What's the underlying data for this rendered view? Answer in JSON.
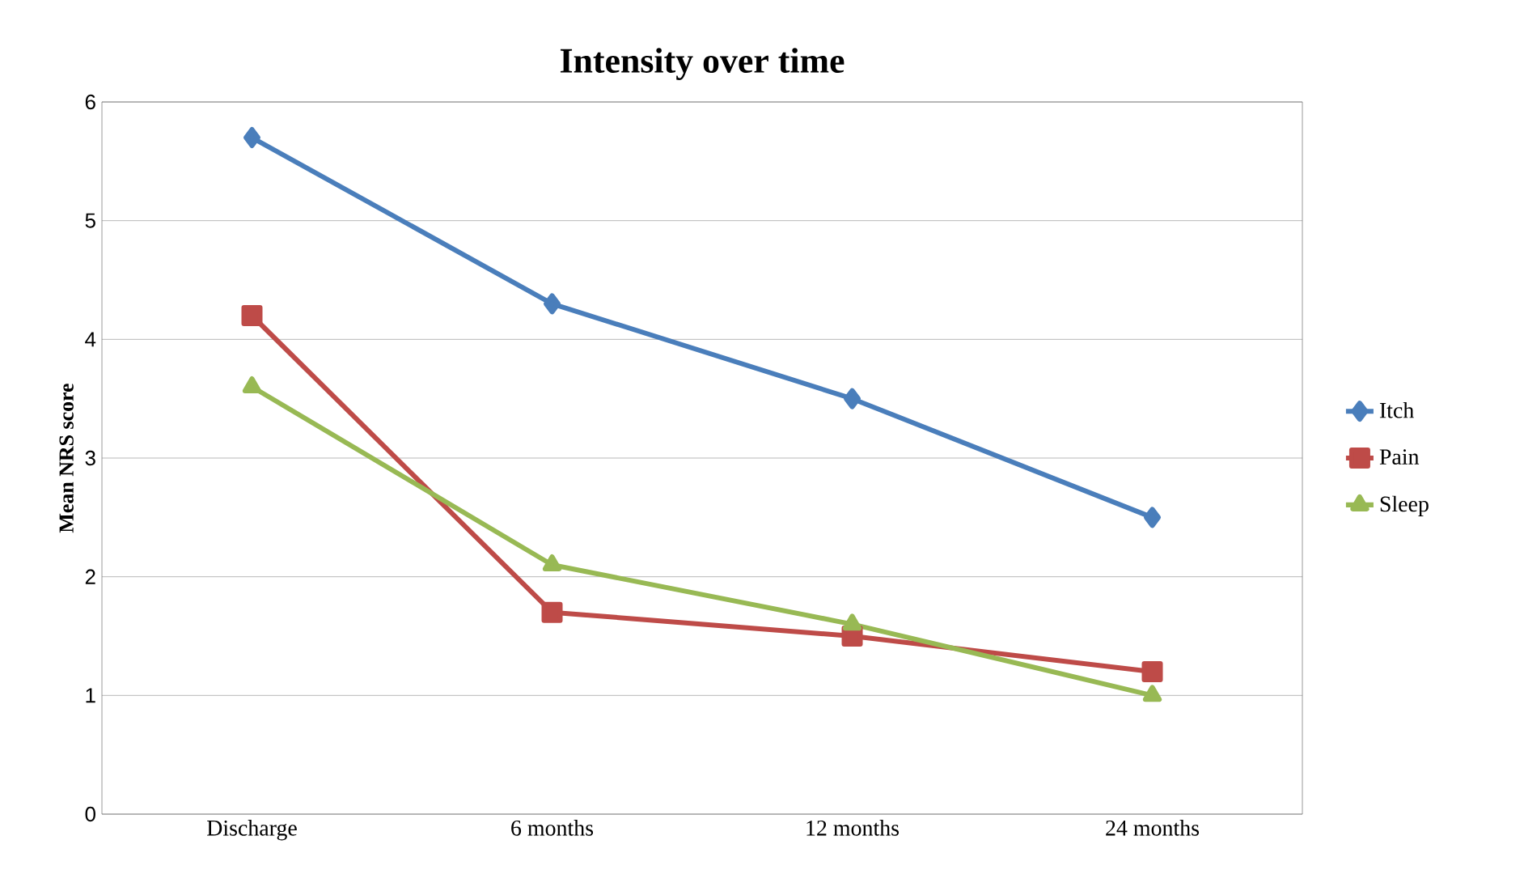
{
  "chart_data": {
    "type": "line",
    "title": "Intensity over time",
    "ylabel": "Mean NRS score",
    "categories": [
      "Discharge",
      "6 months",
      "12 months",
      "24 months"
    ],
    "series": [
      {
        "name": "Itch",
        "color": "#4a7ebb",
        "values": [
          5.7,
          4.3,
          3.5,
          2.5
        ],
        "marker": "diamond"
      },
      {
        "name": "Pain",
        "color": "#be4b48",
        "values": [
          4.2,
          1.7,
          1.5,
          1.2
        ],
        "marker": "square"
      },
      {
        "name": "Sleep",
        "color": "#98b954",
        "values": [
          3.6,
          2.1,
          1.6,
          1.0
        ],
        "marker": "triangle"
      }
    ],
    "ylim": [
      0,
      6
    ],
    "yticks": [
      0,
      1,
      2,
      3,
      4,
      5,
      6
    ],
    "grid": "y",
    "legend": "right",
    "line_style": "solid"
  }
}
